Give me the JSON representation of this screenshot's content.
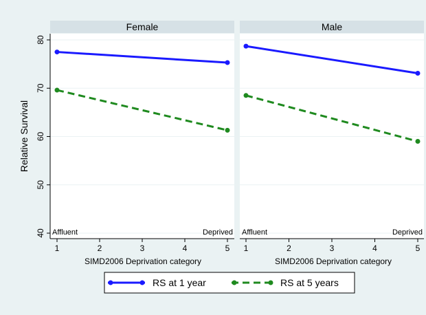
{
  "chart_data": {
    "type": "line",
    "ylabel": "Relative Survival",
    "xlabel": "SIMD2006 Deprivation category",
    "x": [
      1,
      5
    ],
    "xticks": [
      1,
      2,
      3,
      4,
      5
    ],
    "yticks": [
      40,
      50,
      60,
      70,
      80
    ],
    "xlim": [
      1,
      5
    ],
    "ylim": [
      40,
      80
    ],
    "annotations": {
      "left": "Affluent",
      "right": "Deprived"
    },
    "panels": [
      {
        "title": "Female",
        "series": [
          {
            "name": "RS at 1 year",
            "values": [
              77.5,
              75.3
            ]
          },
          {
            "name": "RS at 5 years",
            "values": [
              69.6,
              61.3
            ]
          }
        ]
      },
      {
        "title": "Male",
        "series": [
          {
            "name": "RS at 1 year",
            "values": [
              78.7,
              73.1
            ]
          },
          {
            "name": "RS at 5 years",
            "values": [
              68.5,
              59.0
            ]
          }
        ]
      }
    ],
    "legend": [
      "RS at 1 year",
      "RS at 5 years"
    ],
    "legend_position": "bottom",
    "grid": true,
    "colors": {
      "rs1": "#1a1aff",
      "rs5": "#1f8a1f",
      "background": "#eaf2f3",
      "header": "#d6e1e6",
      "grid": "#eaf2f3"
    }
  }
}
